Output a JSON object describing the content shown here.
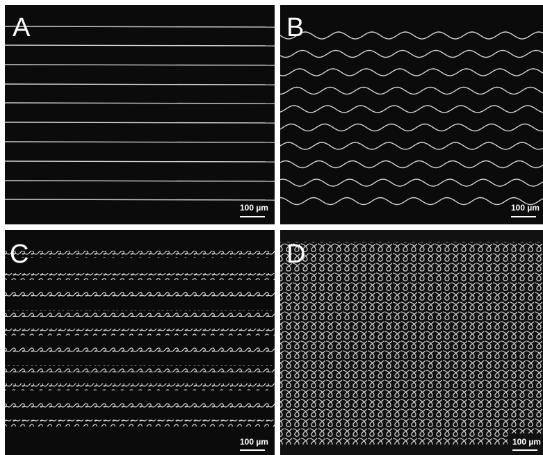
{
  "panels": [
    {
      "label": "A",
      "scale_bar": "100 µm"
    },
    {
      "label": "B",
      "scale_bar": "100 µm"
    },
    {
      "label": "C",
      "scale_bar": "100 µm"
    },
    {
      "label": "D",
      "scale_bar": "100 µm"
    }
  ]
}
